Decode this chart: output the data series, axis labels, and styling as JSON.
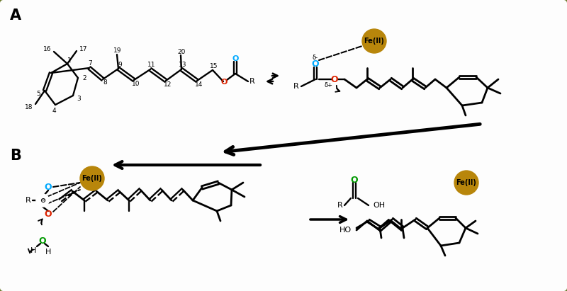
{
  "background_color": "#ffffff",
  "border_color": "#6b7a2a",
  "panel_A_label": "A",
  "panel_B_label": "B",
  "fe_ii_color": "#b8860b",
  "fe_ii_text": "Fe(II)",
  "oxygen_blue_color": "#00aaff",
  "oxygen_red_color": "#dd2200",
  "oxygen_green_color": "#009900",
  "carbon_color": "#000000",
  "arrow_color": "#000000"
}
